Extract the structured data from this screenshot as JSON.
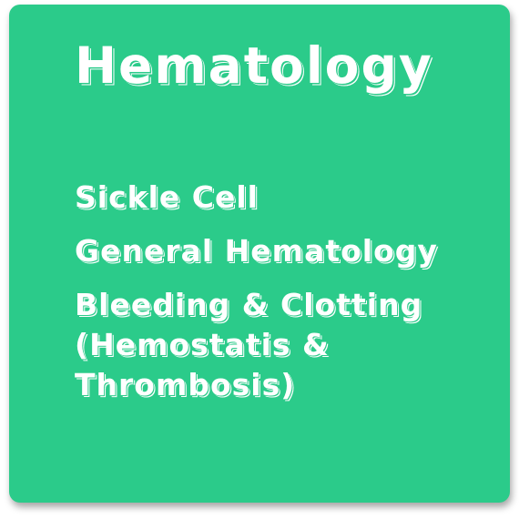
{
  "card": {
    "title": "Hematology",
    "background": "#2bcb8a",
    "topics": [
      {
        "label": "Sickle Cell"
      },
      {
        "label": "General Hematology"
      },
      {
        "label": "Bleeding & Clotting (Hemostatis & Thrombosis)"
      }
    ]
  }
}
